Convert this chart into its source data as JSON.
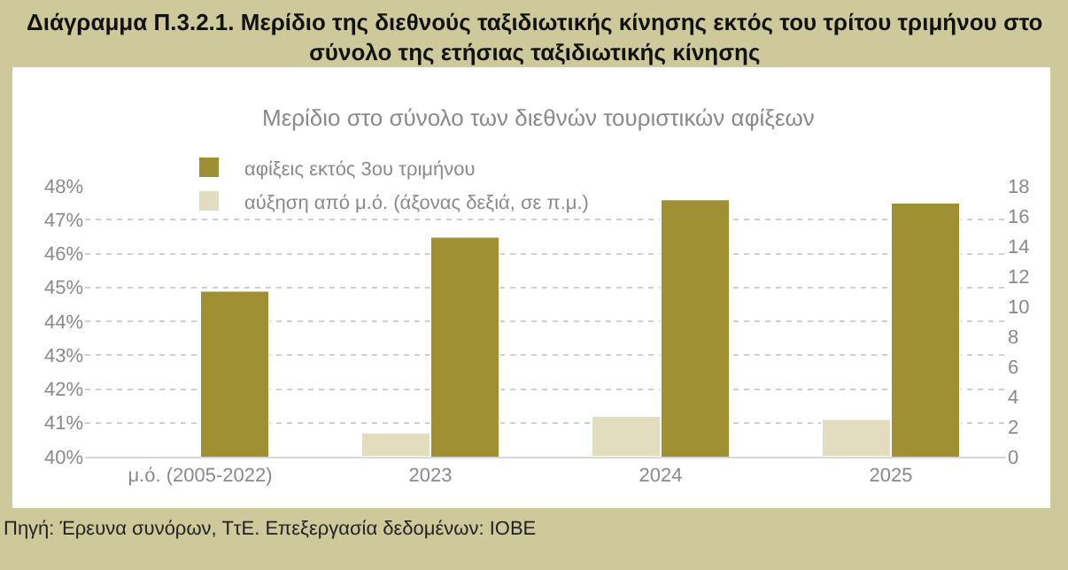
{
  "chart_data": {
    "type": "bar",
    "title": "Διάγραμμα Π.3.2.1. Μερίδιο της διεθνούς ταξιδιωτικής κίνησης εκτός του τρίτου τριμήνου στο σύνολο της ετήσιας ταξιδιωτικής κίνησης",
    "subtitle": "Μερίδιο στο σύνολο των διεθνών τουριστικών αφίξεων",
    "categories": [
      "μ.ό. (2005-2022)",
      "2023",
      "2024",
      "2025"
    ],
    "series": [
      {
        "name": "αφίξεις εκτός 3ου τριμήνου",
        "color": "#9e9033",
        "values": [
          44.9,
          46.5,
          47.6,
          47.5
        ]
      },
      {
        "name": "αύξηση από μ.ό. (άξονας δεξιά, σε π.μ.)",
        "color": "#e2ddbe",
        "values": [
          null,
          1.6,
          2.7,
          2.5
        ],
        "axis": "y2"
      }
    ],
    "ylim": [
      40,
      48
    ],
    "yticks": [
      {
        "value": 40,
        "label": "40%"
      },
      {
        "value": 41,
        "label": "41%"
      },
      {
        "value": 42,
        "label": "42%"
      },
      {
        "value": 43,
        "label": "43%"
      },
      {
        "value": 44,
        "label": "44%"
      },
      {
        "value": 45,
        "label": "45%"
      },
      {
        "value": 46,
        "label": "46%"
      },
      {
        "value": 47,
        "label": "47%"
      },
      {
        "value": 48,
        "label": "48%"
      }
    ],
    "y2lim": [
      0,
      18
    ],
    "y2ticks": [
      0,
      2,
      4,
      6,
      8,
      10,
      12,
      14,
      16,
      18
    ],
    "grid": "y",
    "legend": "top left",
    "annotations": [
      "Πηγή: Έρευνα συνόρων, ΤτΕ. Επεξεργασία δεδομένων: ΙΟΒΕ"
    ]
  }
}
